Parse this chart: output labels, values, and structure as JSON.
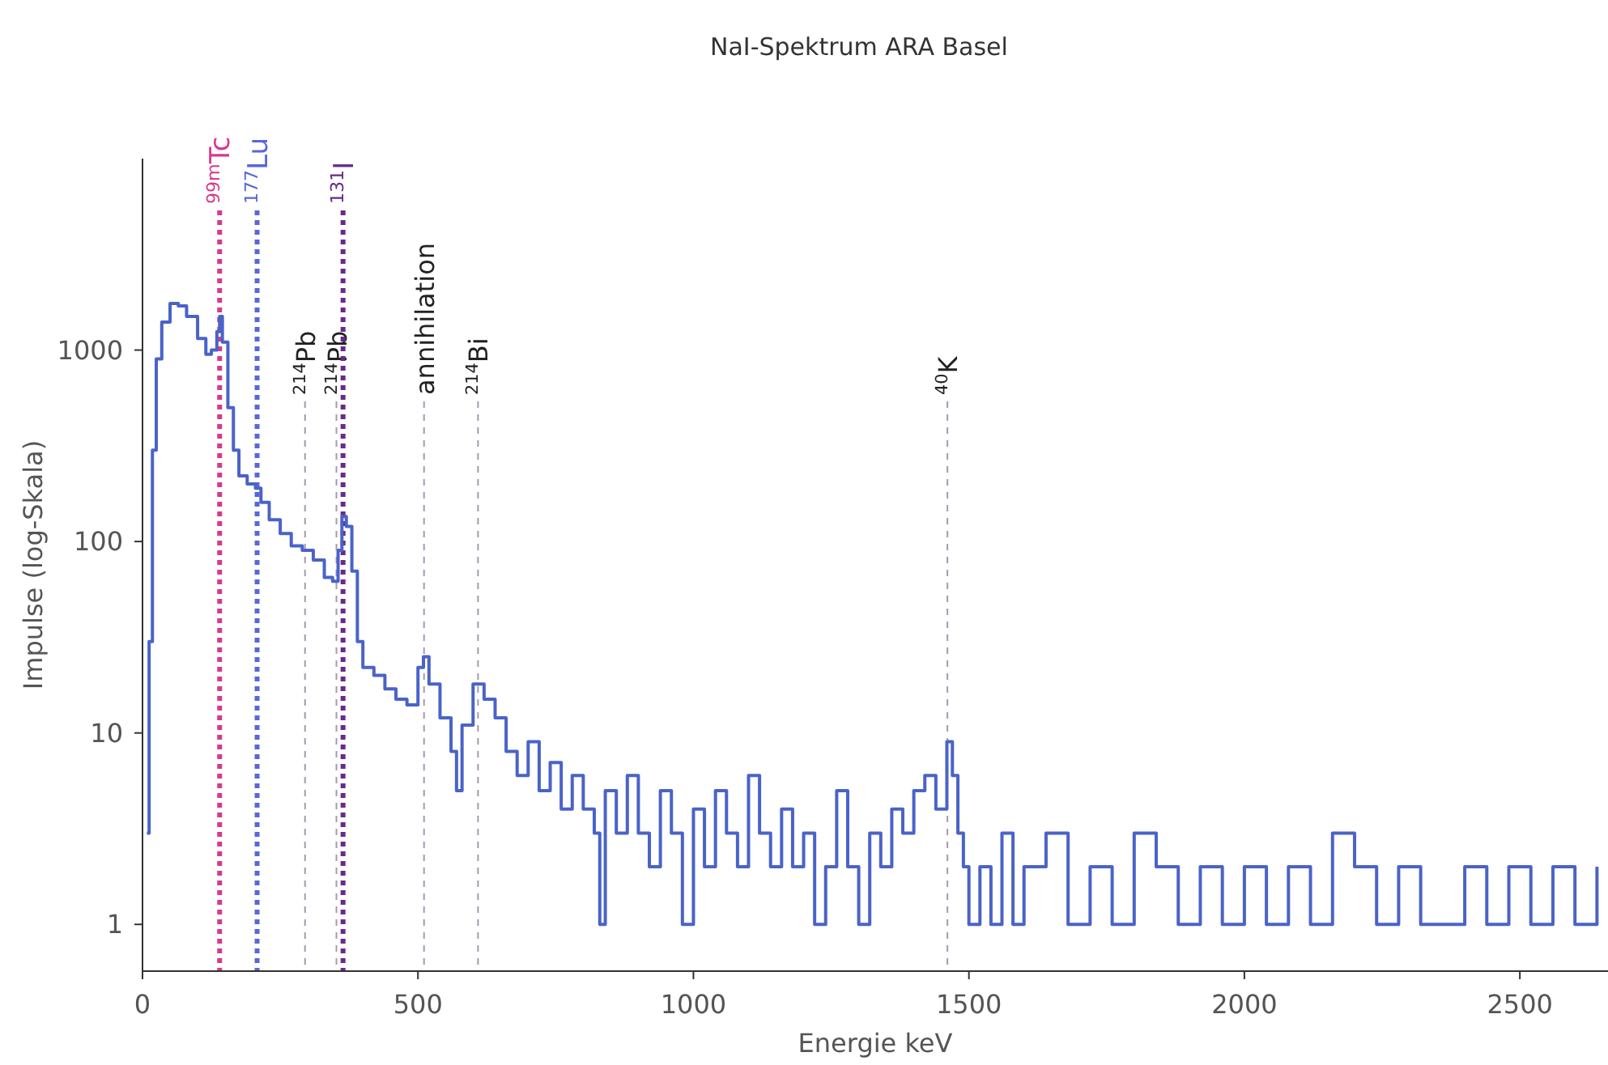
{
  "chart_data": {
    "type": "step",
    "title": "NaI-Spektrum ARA Basel",
    "xlabel": "Energie keV",
    "ylabel": "Impulse (log-Skala)",
    "log": "y",
    "grid": false,
    "xlim": [
      0,
      2660
    ],
    "ylim": [
      0.57,
      10000
    ],
    "xticks": [
      0,
      500,
      1000,
      1500,
      2000,
      2500
    ],
    "yticks": [
      1,
      10,
      100,
      1000
    ],
    "series": [
      {
        "color": "#4a63c8",
        "x": [
          8,
          12,
          18,
          25,
          35,
          50,
          65,
          80,
          100,
          115,
          125,
          135,
          140,
          145,
          155,
          165,
          175,
          190,
          205,
          215,
          230,
          250,
          270,
          290,
          310,
          330,
          345,
          355,
          362,
          370,
          380,
          390,
          400,
          420,
          440,
          460,
          480,
          500,
          510,
          520,
          540,
          560,
          570,
          580,
          600,
          620,
          640,
          660,
          680,
          700,
          720,
          740,
          760,
          780,
          800,
          820,
          830,
          840,
          860,
          880,
          900,
          920,
          940,
          960,
          980,
          1000,
          1020,
          1040,
          1060,
          1080,
          1100,
          1120,
          1140,
          1160,
          1180,
          1200,
          1220,
          1240,
          1260,
          1280,
          1300,
          1320,
          1340,
          1360,
          1380,
          1400,
          1420,
          1440,
          1460,
          1470,
          1480,
          1490,
          1500,
          1520,
          1540,
          1560,
          1580,
          1600,
          1640,
          1680,
          1720,
          1760,
          1800,
          1840,
          1880,
          1920,
          1960,
          2000,
          2040,
          2080,
          2120,
          2160,
          2200,
          2240,
          2280,
          2320,
          2360,
          2400,
          2440,
          2480,
          2520,
          2560,
          2600,
          2640
        ],
        "values": [
          3,
          30,
          300,
          900,
          1400,
          1750,
          1700,
          1500,
          1150,
          950,
          1000,
          1250,
          1500,
          1100,
          500,
          300,
          220,
          200,
          190,
          160,
          130,
          110,
          95,
          90,
          80,
          65,
          62,
          90,
          135,
          120,
          70,
          30,
          22,
          20,
          17,
          15,
          14,
          22,
          25,
          18,
          12,
          8,
          5,
          11,
          18,
          15,
          12,
          8,
          6,
          9,
          5,
          7,
          4,
          6,
          4,
          3,
          1,
          5,
          3,
          6,
          3,
          2,
          5,
          3,
          1,
          4,
          2,
          5,
          3,
          2,
          6,
          3,
          2,
          4,
          2,
          3,
          1,
          2,
          5,
          2,
          1,
          3,
          2,
          4,
          3,
          5,
          6,
          4,
          9,
          6,
          3,
          2,
          1,
          2,
          1,
          3,
          1,
          2,
          3,
          1,
          2,
          1,
          3,
          2,
          1,
          2,
          1,
          2,
          1,
          2,
          1,
          3,
          2,
          1,
          2,
          1,
          1,
          2,
          1,
          2,
          1,
          2,
          1,
          2
        ]
      }
    ],
    "ref_lines": [
      {
        "axis": "x",
        "value": 140,
        "label": "$^{99m}$Tc",
        "color": "#d63a8e",
        "line_style": "dotted"
      },
      {
        "axis": "x",
        "value": 208,
        "label": "$^{177}$Lu",
        "color": "#5868d8",
        "line_style": "dotted"
      },
      {
        "axis": "x",
        "value": 295,
        "label": "$^{214}$Pb",
        "color": "#a898b0",
        "line_style": "dashed"
      },
      {
        "axis": "x",
        "value": 352,
        "label": "$^{214}$Pb",
        "color": "#a898b0",
        "line_style": "dashed"
      },
      {
        "axis": "x",
        "value": 364,
        "label": "$^{131}$I",
        "color": "#6a2a8a",
        "line_style": "dotted"
      },
      {
        "axis": "x",
        "value": 511,
        "label": "annihilation",
        "color": "#a898b0",
        "line_style": "dashed"
      },
      {
        "axis": "x",
        "value": 609,
        "label": "$^{214}$Bi",
        "color": "#a898b0",
        "line_style": "dashed"
      },
      {
        "axis": "x",
        "value": 1461,
        "label": "$^{40}$K",
        "color": "#a898b0",
        "line_style": "dashed"
      }
    ]
  }
}
